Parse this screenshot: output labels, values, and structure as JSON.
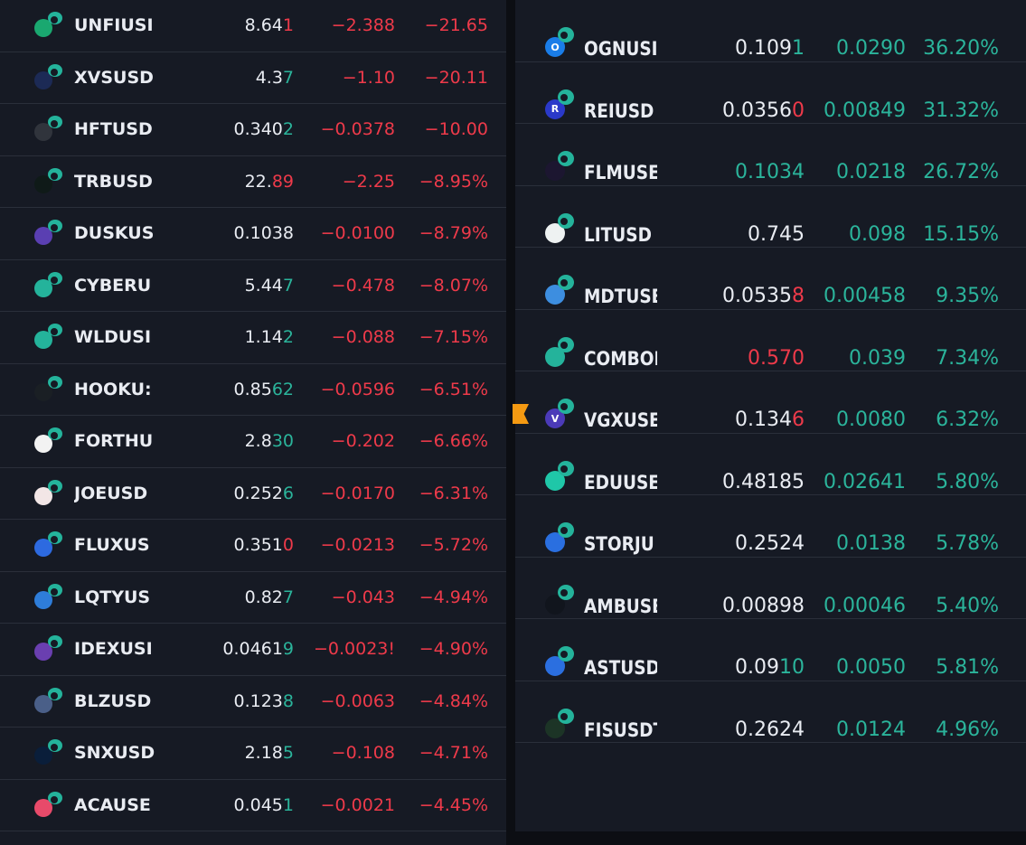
{
  "left_list": [
    {
      "symbol": "UNFIUSI",
      "price_main": "8.64",
      "price_tail": "1",
      "tail_dir": "down",
      "change": "−2.388",
      "percent": "−21.65",
      "icon_color": "#1aa870",
      "icon": "coin-icon"
    },
    {
      "symbol": "XVSUSD",
      "price_main": "4.3",
      "price_tail": "7",
      "tail_dir": "up",
      "change": "−1.10",
      "percent": "−20.11",
      "icon_color": "#1c2a55",
      "icon": "coin-icon"
    },
    {
      "symbol": "HFTUSD",
      "price_main": "0.340",
      "price_tail": "2",
      "tail_dir": "up",
      "change": "−0.0378",
      "percent": "−10.00",
      "icon_color": "#30343c",
      "icon": "coin-icon"
    },
    {
      "symbol": "TRBUSD",
      "price_main": "22.",
      "price_tail": "89",
      "tail_dir": "down",
      "change": "−2.25",
      "percent": "−8.95%",
      "icon_color": "#0f1a18",
      "icon": "coin-icon"
    },
    {
      "symbol": "DUSKUS",
      "price_main": "0.1038",
      "price_tail": "",
      "tail_dir": "none",
      "change": "−0.0100",
      "percent": "−8.79%",
      "icon_color": "#5a3fb2",
      "icon": "coin-icon"
    },
    {
      "symbol": "CYBERU",
      "price_main": "5.44",
      "price_tail": "7",
      "tail_dir": "up",
      "change": "−0.478",
      "percent": "−8.07%",
      "icon_color": "#24b39b",
      "icon": "coin-icon"
    },
    {
      "symbol": "WLDUSI",
      "price_main": "1.14",
      "price_tail": "2",
      "tail_dir": "up",
      "change": "−0.088",
      "percent": "−7.15%",
      "icon_color": "#24b39b",
      "icon": "coin-icon"
    },
    {
      "symbol": "HOOKU:",
      "price_main": "0.85",
      "price_tail": "62",
      "tail_dir": "up",
      "change": "−0.0596",
      "percent": "−6.51%",
      "icon_color": "#1a1f24",
      "icon": "coin-icon"
    },
    {
      "symbol": "FORTHU",
      "price_main": "2.8",
      "price_tail": "30",
      "tail_dir": "up",
      "change": "−0.202",
      "percent": "−6.66%",
      "icon_color": "#f2f2f2",
      "icon": "coin-icon"
    },
    {
      "symbol": "JOEUSD",
      "price_main": "0.252",
      "price_tail": "6",
      "tail_dir": "up",
      "change": "−0.0170",
      "percent": "−6.31%",
      "icon_color": "#f2e6e6",
      "icon": "coin-icon"
    },
    {
      "symbol": "FLUXUS",
      "price_main": "0.351",
      "price_tail": "0",
      "tail_dir": "down",
      "change": "−0.0213",
      "percent": "−5.72%",
      "icon_color": "#2d6ae0",
      "icon": "coin-icon"
    },
    {
      "symbol": "LQTYUS",
      "price_main": "0.82",
      "price_tail": "7",
      "tail_dir": "up",
      "change": "−0.043",
      "percent": "−4.94%",
      "icon_color": "#2e7dd9",
      "icon": "coin-icon"
    },
    {
      "symbol": "IDEXUSI",
      "price_main": "0.0461",
      "price_tail": "9",
      "tail_dir": "up",
      "change": "−0.0023!",
      "percent": "−4.90%",
      "icon_color": "#6a3fb0",
      "icon": "coin-icon"
    },
    {
      "symbol": "BLZUSD",
      "price_main": "0.123",
      "price_tail": "8",
      "tail_dir": "up",
      "change": "−0.0063",
      "percent": "−4.84%",
      "icon_color": "#4a5f88",
      "icon": "coin-icon"
    },
    {
      "symbol": "SNXUSD",
      "price_main": "2.18",
      "price_tail": "5",
      "tail_dir": "up",
      "change": "−0.108",
      "percent": "−4.71%",
      "icon_color": "#0a1e3a",
      "icon": "coin-icon"
    },
    {
      "symbol": "ACAUSE",
      "price_main": "0.045",
      "price_tail": "1",
      "tail_dir": "up",
      "change": "−0.0021",
      "percent": "−4.45%",
      "icon_color": "#e84a6a",
      "icon": "coin-icon"
    }
  ],
  "right_list": [
    {
      "symbol": "OGNUSI",
      "price_main": "0.109",
      "price_tail": "1",
      "tail_dir": "up",
      "price_color": "normal",
      "change": "0.0290",
      "percent": "36.20%",
      "icon_color": "#1a7de8",
      "icon": "coin-icon",
      "letter": "O"
    },
    {
      "symbol": "REIUSD",
      "price_main": "0.0356",
      "price_tail": "0",
      "tail_dir": "down",
      "price_color": "normal",
      "change": "0.00849",
      "percent": "31.32%",
      "icon_color": "#2a39c9",
      "icon": "coin-icon",
      "letter": "R"
    },
    {
      "symbol": "FLMUSE",
      "price_main": "0.1034",
      "price_tail": "",
      "tail_dir": "none",
      "price_color": "up",
      "change": "0.0218",
      "percent": "26.72%",
      "icon_color": "#1c1630",
      "icon": "coin-icon",
      "letter": ""
    },
    {
      "symbol": "LITUSD",
      "price_main": "0.745",
      "price_tail": "",
      "tail_dir": "none",
      "price_color": "normal",
      "change": "0.098",
      "percent": "15.15%",
      "icon_color": "#eef2f2",
      "icon": "coin-icon",
      "letter": ""
    },
    {
      "symbol": "MDTUSE",
      "price_main": "0.0535",
      "price_tail": "8",
      "tail_dir": "down",
      "price_color": "normal",
      "change": "0.00458",
      "percent": "9.35%",
      "icon_color": "#3d8ee0",
      "icon": "coin-icon",
      "letter": ""
    },
    {
      "symbol": "COMBOI",
      "price_main": "0.570",
      "price_tail": "",
      "tail_dir": "none",
      "price_color": "down",
      "change": "0.039",
      "percent": "7.34%",
      "icon_color": "#24b39b",
      "icon": "coin-icon",
      "letter": ""
    },
    {
      "symbol": "VGXUSE",
      "price_main": "0.134",
      "price_tail": "6",
      "tail_dir": "down",
      "price_color": "normal",
      "change": "0.0080",
      "percent": "6.32%",
      "icon_color": "#4b3ab8",
      "icon": "coin-icon",
      "letter": "V"
    },
    {
      "symbol": "EDUUSE",
      "price_main": "0.48185",
      "price_tail": "",
      "tail_dir": "none",
      "price_color": "normal",
      "change": "0.02641",
      "percent": "5.80%",
      "icon_color": "#1fc7a8",
      "icon": "coin-icon",
      "letter": ""
    },
    {
      "symbol": "STORJU",
      "price_main": "0.2524",
      "price_tail": "",
      "tail_dir": "none",
      "price_color": "normal",
      "change": "0.0138",
      "percent": "5.78%",
      "icon_color": "#2a6fe0",
      "icon": "coin-icon",
      "letter": ""
    },
    {
      "symbol": "AMBUSE",
      "price_main": "0.00898",
      "price_tail": "",
      "tail_dir": "none",
      "price_color": "normal",
      "change": "0.00046",
      "percent": "5.40%",
      "icon_color": "#11151d",
      "icon": "coin-icon",
      "letter": ""
    },
    {
      "symbol": "ASTUSD",
      "price_main": "0.09",
      "price_tail": "10",
      "tail_dir": "up",
      "price_color": "normal",
      "change": "0.0050",
      "percent": "5.81%",
      "icon_color": "#2b6fe0",
      "icon": "coin-icon",
      "letter": ""
    },
    {
      "symbol": "FISUSDT",
      "price_main": "0.2624",
      "price_tail": "",
      "tail_dir": "none",
      "price_color": "normal",
      "change": "0.0124",
      "percent": "4.96%",
      "icon_color": "#1c3426",
      "icon": "coin-icon",
      "letter": ""
    }
  ],
  "selected_marker": {
    "row": 6,
    "color": "#f59a12"
  }
}
